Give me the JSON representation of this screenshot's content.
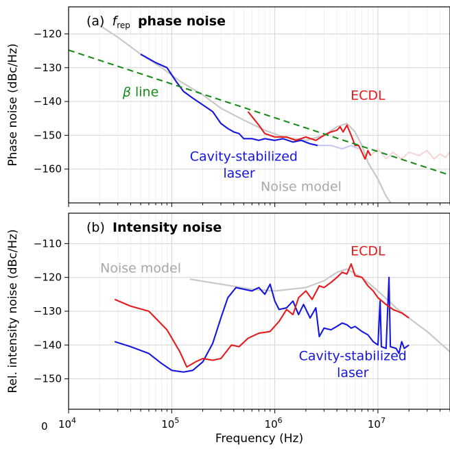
{
  "chart_data": [
    {
      "type": "line",
      "panel": "a",
      "title_prefix": "(a)",
      "title_symbol": "f",
      "title_subscript": "rep",
      "title_bold": "phase noise",
      "ylabel": "Phase noise (dBc/Hz)",
      "xlabel": "",
      "xscale": "log",
      "xlim": [
        10000,
        50000000
      ],
      "ylim": [
        -170,
        -112
      ],
      "yticks": [
        -120,
        -130,
        -140,
        -150,
        -160
      ],
      "grid": true,
      "annotations": [
        {
          "text": "β line",
          "x": 50000,
          "y": -138.5,
          "color": "#1a8a1a"
        },
        {
          "text": "ECDL",
          "x": 8000000,
          "y": -139.5,
          "color": "#e41a1c"
        },
        {
          "text": "Cavity-stabilized",
          "x": 500000,
          "y": -157.5,
          "color": "#1515e0"
        },
        {
          "text": "laser",
          "x": 450000,
          "y": -162.5,
          "color": "#1515e0"
        },
        {
          "text": "Noise model",
          "x": 1800000,
          "y": -166.5,
          "color": "#a8a8a8"
        }
      ],
      "series": [
        {
          "role": "noise-model",
          "color": "#c8c8c8",
          "points": [
            [
              20000,
              -117.5
            ],
            [
              30000,
              -121
            ],
            [
              50000,
              -126
            ],
            [
              80000,
              -130
            ],
            [
              120000,
              -134
            ],
            [
              200000,
              -138
            ],
            [
              300000,
              -142
            ],
            [
              500000,
              -145.5
            ],
            [
              800000,
              -148.5
            ],
            [
              1200000,
              -150.5
            ],
            [
              2000000,
              -151.5
            ],
            [
              3000000,
              -150
            ],
            [
              4000000,
              -147.5
            ],
            [
              5000000,
              -146.5
            ],
            [
              6000000,
              -149
            ],
            [
              7000000,
              -153
            ],
            [
              8000000,
              -158
            ],
            [
              10000000,
              -163
            ],
            [
              12000000,
              -168
            ],
            [
              14000000,
              -171
            ]
          ]
        },
        {
          "role": "beta-line",
          "color": "#1a8a1a",
          "dashed": true,
          "points": [
            [
              10000,
              -124.8
            ],
            [
              50000000,
              -161.8
            ]
          ]
        },
        {
          "role": "cavity-stabilized",
          "color": "#1515e0",
          "points": [
            [
              50000,
              -126
            ],
            [
              70000,
              -128.5
            ],
            [
              90000,
              -130
            ],
            [
              110000,
              -134
            ],
            [
              130000,
              -137
            ],
            [
              160000,
              -139
            ],
            [
              200000,
              -141
            ],
            [
              250000,
              -143
            ],
            [
              300000,
              -146.5
            ],
            [
              350000,
              -148
            ],
            [
              400000,
              -149
            ],
            [
              450000,
              -149.5
            ],
            [
              500000,
              -151
            ],
            [
              600000,
              -151
            ],
            [
              700000,
              -151.5
            ],
            [
              800000,
              -151
            ],
            [
              1000000,
              -151.5
            ],
            [
              1200000,
              -151
            ],
            [
              1500000,
              -152
            ],
            [
              1800000,
              -151.5
            ],
            [
              2200000,
              -152.5
            ],
            [
              2600000,
              -153
            ]
          ]
        },
        {
          "role": "ecdl",
          "color": "#e41a1c",
          "points": [
            [
              550000,
              -143
            ],
            [
              700000,
              -147
            ],
            [
              800000,
              -149.5
            ],
            [
              1000000,
              -150.5
            ],
            [
              1300000,
              -150.5
            ],
            [
              1600000,
              -151.5
            ],
            [
              2000000,
              -150.5
            ],
            [
              2500000,
              -151.5
            ],
            [
              3000000,
              -150
            ],
            [
              3500000,
              -149
            ],
            [
              4000000,
              -148.5
            ],
            [
              4300000,
              -147.5
            ],
            [
              4600000,
              -149
            ],
            [
              5000000,
              -147
            ],
            [
              5500000,
              -150
            ],
            [
              6000000,
              -153
            ],
            [
              6500000,
              -153
            ],
            [
              7000000,
              -155
            ],
            [
              7500000,
              -157
            ],
            [
              8000000,
              -154.5
            ],
            [
              8500000,
              -156
            ]
          ]
        },
        {
          "role": "cavity-stabilized-faded",
          "color": "#c8c8f4",
          "points": [
            [
              2500000,
              -153
            ],
            [
              3500000,
              -153
            ],
            [
              4500000,
              -154
            ],
            [
              5500000,
              -153
            ],
            [
              6500000,
              -154
            ]
          ]
        },
        {
          "role": "ecdl-faded",
          "color": "#f9d4d4",
          "points": [
            [
              8500000,
              -156
            ],
            [
              10000000,
              -154
            ],
            [
              12000000,
              -157
            ],
            [
              14000000,
              -155
            ],
            [
              17000000,
              -157
            ],
            [
              20000000,
              -155
            ],
            [
              25000000,
              -156
            ],
            [
              30000000,
              -154.5
            ],
            [
              35000000,
              -157
            ],
            [
              40000000,
              -155.5
            ],
            [
              45000000,
              -156.5
            ],
            [
              50000000,
              -155
            ]
          ]
        }
      ]
    },
    {
      "type": "line",
      "panel": "b",
      "title_prefix": "(b)",
      "title_bold": "Intensity noise",
      "ylabel": "Rel. intensity noise (dBc/Hz)",
      "xlabel": "Frequency (Hz)",
      "xscale": "log",
      "xlim": [
        10000,
        50000000
      ],
      "ylim": [
        -159,
        -101
      ],
      "yticks": [
        -110,
        -120,
        -130,
        -140,
        -150
      ],
      "xticks": [
        "10^4",
        "10^5",
        "10^6",
        "10^7"
      ],
      "corner_tick_label": "0",
      "grid": true,
      "annotations": [
        {
          "text": "Noise model",
          "x": 50000,
          "y": -118.5,
          "color": "#a8a8a8"
        },
        {
          "text": "ECDL",
          "x": 8000000,
          "y": -113.5,
          "color": "#e41a1c"
        },
        {
          "text": "Cavity-stabilized",
          "x": 5700000,
          "y": -144.5,
          "color": "#1515e0"
        },
        {
          "text": "laser",
          "x": 5700000,
          "y": -149.5,
          "color": "#1515e0"
        }
      ],
      "series": [
        {
          "role": "noise-model",
          "color": "#c8c8c8",
          "points": [
            [
              150000,
              -120.5
            ],
            [
              300000,
              -122
            ],
            [
              600000,
              -123.5
            ],
            [
              1000000,
              -124
            ],
            [
              2000000,
              -123
            ],
            [
              3000000,
              -121
            ],
            [
              4000000,
              -118.5
            ],
            [
              5000000,
              -117.5
            ],
            [
              7000000,
              -120
            ],
            [
              10000000,
              -124
            ],
            [
              15000000,
              -129
            ],
            [
              20000000,
              -132
            ],
            [
              30000000,
              -136
            ],
            [
              50000000,
              -142
            ]
          ]
        },
        {
          "role": "ecdl",
          "color": "#e41a1c",
          "points": [
            [
              28000,
              -126.5
            ],
            [
              40000,
              -128.5
            ],
            [
              60000,
              -130
            ],
            [
              90000,
              -135.5
            ],
            [
              120000,
              -142
            ],
            [
              140000,
              -146.5
            ],
            [
              170000,
              -145
            ],
            [
              200000,
              -144
            ],
            [
              250000,
              -144.5
            ],
            [
              300000,
              -144
            ],
            [
              380000,
              -140
            ],
            [
              450000,
              -140.5
            ],
            [
              550000,
              -138
            ],
            [
              700000,
              -136.5
            ],
            [
              900000,
              -136
            ],
            [
              1100000,
              -133
            ],
            [
              1300000,
              -129.5
            ],
            [
              1500000,
              -131
            ],
            [
              1700000,
              -126
            ],
            [
              2000000,
              -124
            ],
            [
              2300000,
              -126.5
            ],
            [
              2700000,
              -122.5
            ],
            [
              3000000,
              -123
            ],
            [
              3500000,
              -121.5
            ],
            [
              4000000,
              -120
            ],
            [
              4500000,
              -118.5
            ],
            [
              5000000,
              -119
            ],
            [
              5500000,
              -116
            ],
            [
              6000000,
              -119.5
            ],
            [
              7000000,
              -120
            ],
            [
              8000000,
              -122.5
            ],
            [
              9000000,
              -124
            ],
            [
              10000000,
              -126
            ],
            [
              12000000,
              -128
            ],
            [
              14000000,
              -129.5
            ],
            [
              17000000,
              -130.5
            ],
            [
              20000000,
              -132
            ]
          ]
        },
        {
          "role": "cavity-stabilized",
          "color": "#1515e0",
          "points": [
            [
              28000,
              -139
            ],
            [
              40000,
              -140.5
            ],
            [
              60000,
              -142.5
            ],
            [
              80000,
              -145.5
            ],
            [
              100000,
              -147.5
            ],
            [
              130000,
              -148
            ],
            [
              160000,
              -147.5
            ],
            [
              200000,
              -145
            ],
            [
              250000,
              -139.5
            ],
            [
              300000,
              -132
            ],
            [
              350000,
              -126
            ],
            [
              420000,
              -123
            ],
            [
              500000,
              -123.5
            ],
            [
              600000,
              -124
            ],
            [
              700000,
              -123
            ],
            [
              800000,
              -125
            ],
            [
              900000,
              -122
            ],
            [
              1000000,
              -127
            ],
            [
              1100000,
              -129.5
            ],
            [
              1300000,
              -129
            ],
            [
              1500000,
              -127
            ],
            [
              1700000,
              -131
            ],
            [
              1900000,
              -128
            ],
            [
              2200000,
              -132
            ],
            [
              2500000,
              -129
            ],
            [
              2700000,
              -137.5
            ],
            [
              3000000,
              -135
            ],
            [
              3500000,
              -135.5
            ],
            [
              4000000,
              -134.5
            ],
            [
              4500000,
              -133.5
            ],
            [
              5000000,
              -134
            ],
            [
              5500000,
              -135
            ],
            [
              6000000,
              -134.5
            ],
            [
              7000000,
              -136
            ],
            [
              8000000,
              -137
            ],
            [
              9000000,
              -139
            ],
            [
              10000000,
              -140
            ],
            [
              10500000,
              -127
            ],
            [
              10800000,
              -140.5
            ],
            [
              12000000,
              -141
            ],
            [
              12800000,
              -120
            ],
            [
              13200000,
              -140.5
            ],
            [
              15000000,
              -141
            ],
            [
              16000000,
              -142.5
            ],
            [
              17000000,
              -139
            ],
            [
              18000000,
              -141
            ],
            [
              20000000,
              -140
            ]
          ]
        }
      ]
    }
  ]
}
